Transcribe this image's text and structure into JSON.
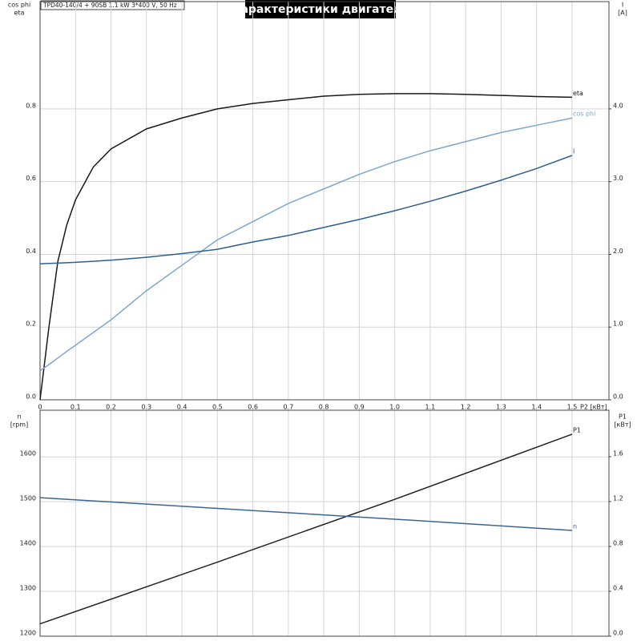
{
  "header": {
    "title": "Характеристики двигателя",
    "info": "TPD40-140/4 + 90SB   1.1 kW   3*400 V, 50 Hz"
  },
  "chart_data": [
    {
      "type": "line",
      "ylabel": [
        "cos phi",
        "eta"
      ],
      "y2label": [
        "I",
        "[A]"
      ],
      "xlabel": "P2 [кВт]",
      "x": [
        0,
        0.025,
        0.05,
        0.075,
        0.1,
        0.15,
        0.2,
        0.3,
        0.4,
        0.5,
        0.6,
        0.7,
        0.8,
        0.9,
        1.0,
        1.1,
        1.2,
        1.3,
        1.4,
        1.5
      ],
      "series": [
        {
          "name": "eta",
          "color": "#1a1a1a",
          "values": [
            0,
            0.2,
            0.38,
            0.48,
            0.55,
            0.64,
            0.69,
            0.745,
            0.775,
            0.8,
            0.815,
            0.825,
            0.835,
            0.84,
            0.842,
            0.842,
            0.84,
            0.837,
            0.834,
            0.832
          ]
        },
        {
          "name": "cos phi",
          "color": "#7ea6cf",
          "values": [
            0.08,
            0.097,
            0.115,
            0.133,
            0.15,
            0.185,
            0.22,
            0.3,
            0.37,
            0.44,
            0.49,
            0.54,
            0.58,
            0.62,
            0.655,
            0.685,
            0.71,
            0.735,
            0.755,
            0.775
          ]
        },
        {
          "name": "I",
          "color": "#2f5f91",
          "axis": "y2",
          "values": [
            1.87,
            1.875,
            1.88,
            1.885,
            1.89,
            1.905,
            1.92,
            1.96,
            2.01,
            2.07,
            2.17,
            2.26,
            2.37,
            2.48,
            2.6,
            2.73,
            2.87,
            3.02,
            3.18,
            3.36
          ]
        }
      ],
      "xlim": [
        0,
        1.604
      ],
      "xticks": [
        0,
        0.1,
        0.2,
        0.3,
        0.4,
        0.5,
        0.6,
        0.7,
        0.8,
        0.9,
        {
          "value": 1,
          "label": "1.0"
        },
        1.1,
        1.2,
        1.3,
        1.4,
        1.5
      ],
      "ylim": [
        0,
        1.095
      ],
      "yticks": [
        {
          "value": 0,
          "label": "0.0"
        },
        0.2,
        0.4,
        0.6,
        0.8
      ],
      "y2lim": [
        0,
        5.475
      ],
      "y2ticks": [
        {
          "value": 0,
          "label": "0.0"
        },
        {
          "value": 1,
          "label": "1.0"
        },
        {
          "value": 2,
          "label": "2.0"
        },
        {
          "value": 3,
          "label": "3.0"
        },
        {
          "value": 4,
          "label": "4.0"
        }
      ],
      "grid": true
    },
    {
      "type": "line",
      "ylabel": [
        "n",
        "[rpm]"
      ],
      "y2label": [
        "P1",
        "[кВт]"
      ],
      "x": [
        0,
        0.5,
        1.0,
        1.5
      ],
      "series": [
        {
          "name": "P1",
          "color": "#222222",
          "axis": "y2",
          "values": [
            0.11,
            0.66,
            1.22,
            1.8
          ]
        },
        {
          "name": "n",
          "color": "#3a6593",
          "values": [
            1509,
            1485,
            1461,
            1436
          ]
        }
      ],
      "xlim": [
        0,
        1.604
      ],
      "ylim": [
        1200,
        1704
      ],
      "yticks": [
        1200,
        1300,
        1400,
        1500,
        1600
      ],
      "y2lim": [
        0,
        2.014
      ],
      "y2ticks": [
        {
          "value": 0,
          "label": "0.0"
        },
        0.4,
        0.8,
        1.2,
        1.6
      ],
      "grid": true
    }
  ]
}
